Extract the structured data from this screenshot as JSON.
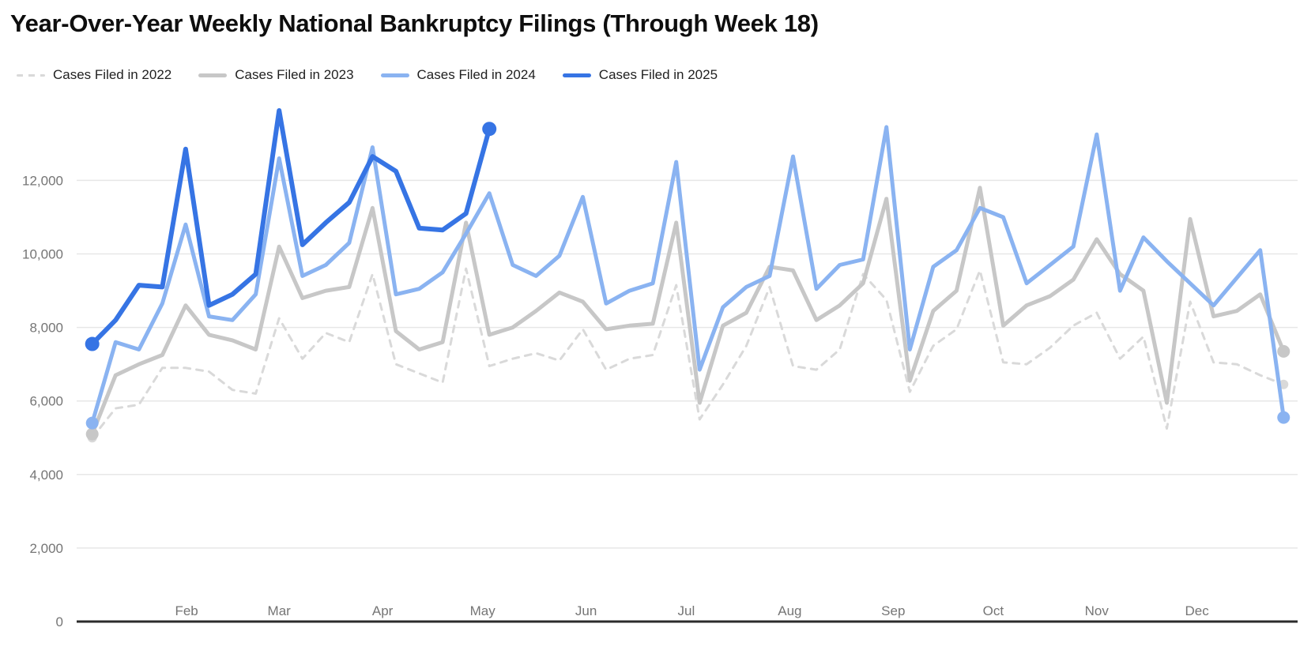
{
  "title": "Year-Over-Year Weekly National Bankruptcy Filings (Through Week 18)",
  "chart_data": {
    "type": "line",
    "title": "Year-Over-Year Weekly National Bankruptcy Filings (Through Week 18)",
    "x_unit": "week_of_year",
    "x_range": [
      1,
      52
    ],
    "grid": "horizontal",
    "legend_position": "top",
    "y_axis": {
      "min": 0,
      "max_visible_gridline": 12000,
      "tick_step": 2000,
      "ticks": [
        0,
        2000,
        4000,
        6000,
        8000,
        10000,
        12000
      ],
      "tick_labels": [
        "0",
        "2,000",
        "4,000",
        "6,000",
        "8,000",
        "10,000",
        "12,000"
      ]
    },
    "x_axis": {
      "months": [
        {
          "label": "Feb",
          "week": 5.04
        },
        {
          "label": "Mar",
          "week": 9.0
        },
        {
          "label": "Apr",
          "week": 13.43
        },
        {
          "label": "May",
          "week": 17.71
        },
        {
          "label": "Jun",
          "week": 22.14
        },
        {
          "label": "Jul",
          "week": 26.43
        },
        {
          "label": "Aug",
          "week": 30.86
        },
        {
          "label": "Sep",
          "week": 35.29
        },
        {
          "label": "Oct",
          "week": 39.57
        },
        {
          "label": "Nov",
          "week": 44.0
        },
        {
          "label": "Dec",
          "week": 48.29
        }
      ]
    },
    "series": [
      {
        "name": "Cases Filed in 2022",
        "year": 2022,
        "color": "#d9d9d9",
        "style": "dashed",
        "line_width": 3,
        "start_week": 1,
        "values": [
          5000,
          5800,
          5900,
          6900,
          6900,
          6800,
          6300,
          6200,
          8250,
          7150,
          7850,
          7600,
          9450,
          7000,
          6750,
          6500,
          9600,
          6950,
          7150,
          7300,
          7100,
          7950,
          6850,
          7150,
          7250,
          9150,
          5500,
          6450,
          7500,
          9100,
          6950,
          6850,
          7400,
          9450,
          8750,
          6250,
          7500,
          7950,
          9550,
          7050,
          7000,
          7450,
          8050,
          8400,
          7150,
          7750,
          5250,
          8700,
          7050,
          7000,
          6700,
          6450
        ]
      },
      {
        "name": "Cases Filed in 2023",
        "year": 2023,
        "color": "#c7c7c7",
        "style": "solid",
        "line_width": 5,
        "start_week": 1,
        "values": [
          5100,
          6700,
          7000,
          7250,
          8600,
          7800,
          7650,
          7400,
          10200,
          8800,
          9000,
          9100,
          11250,
          7900,
          7400,
          7600,
          10850,
          7800,
          8000,
          8450,
          8950,
          8700,
          7950,
          8050,
          8100,
          10850,
          5950,
          8050,
          8400,
          9650,
          9550,
          8200,
          8600,
          9200,
          11500,
          6550,
          8450,
          9000,
          11800,
          8050,
          8600,
          8850,
          9300,
          10400,
          9450,
          9000,
          5950,
          10950,
          8300,
          8450,
          8900,
          7350
        ]
      },
      {
        "name": "Cases Filed in 2024",
        "year": 2024,
        "color": "#8ab3f1",
        "style": "solid",
        "line_width": 5,
        "start_week": 1,
        "values": [
          5400,
          7600,
          7400,
          8650,
          10800,
          8300,
          8200,
          8900,
          12600,
          9400,
          9700,
          10300,
          12900,
          8900,
          9050,
          9500,
          10550,
          11650,
          9700,
          9400,
          9950,
          11550,
          8650,
          9000,
          9200,
          12500,
          6850,
          8550,
          9100,
          9400,
          12650,
          9050,
          9700,
          9850,
          13450,
          7400,
          9650,
          10100,
          11250,
          11000,
          9200,
          9700,
          10200,
          13250,
          9000,
          10450,
          9800,
          9200,
          8600,
          9350,
          10100,
          5550
        ]
      },
      {
        "name": "Cases Filed in 2025",
        "year": 2025,
        "color": "#3674e4",
        "style": "solid",
        "line_width": 6,
        "start_week": 1,
        "values": [
          7550,
          8200,
          9150,
          9100,
          12850,
          8600,
          8900,
          9450,
          13900,
          10250,
          10850,
          11400,
          12650,
          12250,
          10700,
          10650,
          11100,
          13400
        ]
      }
    ]
  },
  "colors": {
    "background": "#ffffff",
    "gridline": "#e7e7e7",
    "axis_line": "#2b2b2b",
    "tick_label": "#757575",
    "title": "#0e0e0e",
    "legend_text": "#1f1f1f"
  }
}
